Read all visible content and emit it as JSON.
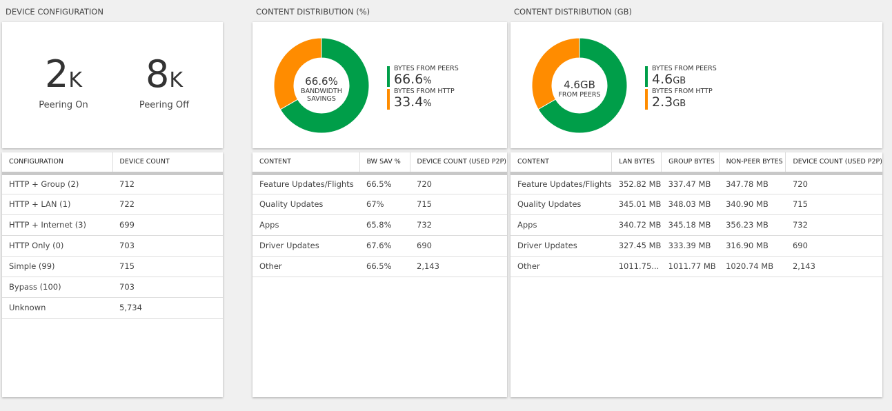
{
  "colors": {
    "peers": "#009e49",
    "http": "#ff8c00"
  },
  "device_config": {
    "title": "DEVICE CONFIGURATION",
    "kpis": [
      {
        "value": "2",
        "unit": "K",
        "label": "Peering On"
      },
      {
        "value": "8",
        "unit": "K",
        "label": "Peering Off"
      }
    ],
    "headers": [
      "CONFIGURATION",
      "DEVICE COUNT"
    ],
    "rows": [
      [
        "HTTP + Group (2)",
        "712"
      ],
      [
        "HTTP + LAN (1)",
        "722"
      ],
      [
        "HTTP + Internet (3)",
        "699"
      ],
      [
        "HTTP Only (0)",
        "703"
      ],
      [
        "Simple (99)",
        "715"
      ],
      [
        "Bypass (100)",
        "703"
      ],
      [
        "Unknown",
        "5,734"
      ]
    ]
  },
  "dist_pct": {
    "title": "CONTENT DISTRIBUTION (%)",
    "center_value": "66.6%",
    "center_label": "BANDWIDTH SAVINGS",
    "peers_label": "BYTES FROM PEERS",
    "peers_value": "66.6",
    "peers_unit": "%",
    "http_label": "BYTES FROM HTTP",
    "http_value": "33.4",
    "http_unit": "%",
    "chart_data": {
      "type": "pie",
      "categories": [
        "Bytes from peers",
        "Bytes from HTTP"
      ],
      "values": [
        66.6,
        33.4
      ]
    },
    "headers": [
      "CONTENT",
      "BW SAV %",
      "DEVICE COUNT (USED P2P)"
    ],
    "rows": [
      [
        "Feature Updates/Flights",
        "66.5%",
        "720"
      ],
      [
        "Quality Updates",
        "67%",
        "715"
      ],
      [
        "Apps",
        "65.8%",
        "732"
      ],
      [
        "Driver Updates",
        "67.6%",
        "690"
      ],
      [
        "Other",
        "66.5%",
        "2,143"
      ]
    ]
  },
  "dist_gb": {
    "title": "CONTENT DISTRIBUTION (GB)",
    "center_value": "4.6GB",
    "center_label": "FROM PEERS",
    "peers_label": "BYTES FROM PEERS",
    "peers_value": "4.6",
    "peers_unit": "GB",
    "http_label": "BYTES FROM HTTP",
    "http_value": "2.3",
    "http_unit": "GB",
    "chart_data": {
      "type": "pie",
      "categories": [
        "Bytes from peers",
        "Bytes from HTTP"
      ],
      "values": [
        4.6,
        2.3
      ]
    },
    "headers": [
      "CONTENT",
      "LAN BYTES",
      "GROUP BYTES",
      "NON-PEER BYTES",
      "DEVICE COUNT (USED P2P)"
    ],
    "rows": [
      [
        "Feature Updates/Flights",
        "352.82 MB",
        "337.47 MB",
        "347.78 MB",
        "720"
      ],
      [
        "Quality Updates",
        "345.01 MB",
        "348.03 MB",
        "340.90 MB",
        "715"
      ],
      [
        "Apps",
        "340.72 MB",
        "345.18 MB",
        "356.23 MB",
        "732"
      ],
      [
        "Driver Updates",
        "327.45 MB",
        "333.39 MB",
        "316.90 MB",
        "690"
      ],
      [
        "Other",
        "1011.75...",
        "1011.77 MB",
        "1020.74 MB",
        "2,143"
      ]
    ]
  }
}
